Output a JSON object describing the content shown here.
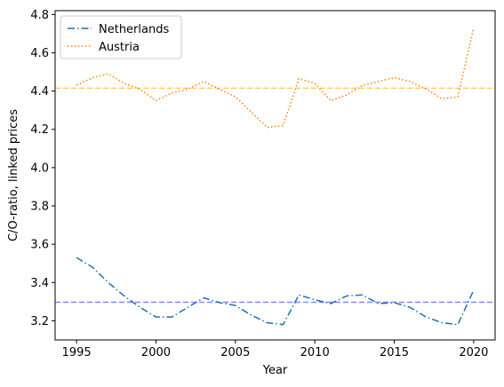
{
  "chart_data": {
    "type": "line",
    "xlabel": "Year",
    "ylabel": "C/O-ratio, linked prices",
    "xlim": [
      1993.65,
      2021.35
    ],
    "ylim": [
      3.1,
      4.82
    ],
    "xticks": [
      1995,
      2000,
      2005,
      2010,
      2015,
      2020
    ],
    "yticks": [
      3.2,
      3.4,
      3.6,
      3.8,
      4.0,
      4.2,
      4.4,
      4.6,
      4.8
    ],
    "ytick_labels": [
      "3.2",
      "3.4",
      "3.6",
      "3.8",
      "4.0",
      "4.2",
      "4.4",
      "4.6",
      "4.8"
    ],
    "grid": false,
    "legend_position": "top-left",
    "x": [
      1995,
      1996,
      1997,
      1998,
      1999,
      2000,
      2001,
      2002,
      2003,
      2004,
      2005,
      2006,
      2007,
      2008,
      2009,
      2010,
      2011,
      2012,
      2013,
      2014,
      2015,
      2016,
      2017,
      2018,
      2019,
      2020
    ],
    "series": [
      {
        "name": "Netherlands",
        "color": "#1f6fb0",
        "style": "dashdot",
        "values": [
          3.53,
          3.48,
          3.4,
          3.33,
          3.27,
          3.22,
          3.22,
          3.27,
          3.32,
          3.295,
          3.28,
          3.23,
          3.19,
          3.18,
          3.335,
          3.31,
          3.29,
          3.33,
          3.335,
          3.29,
          3.295,
          3.27,
          3.22,
          3.19,
          3.18,
          3.36
        ]
      },
      {
        "name": "Austria",
        "color": "#ff7f0e",
        "style": "dotted",
        "values": [
          4.43,
          4.47,
          4.49,
          4.44,
          4.41,
          4.35,
          4.39,
          4.41,
          4.45,
          4.41,
          4.37,
          4.29,
          4.21,
          4.22,
          4.465,
          4.44,
          4.35,
          4.38,
          4.43,
          4.45,
          4.47,
          4.45,
          4.41,
          4.36,
          4.37,
          4.73
        ]
      }
    ],
    "reference_lines": [
      {
        "y": 4.415,
        "color": "#ffcc66",
        "style": "dashed"
      },
      {
        "y": 3.297,
        "color": "#8888ff",
        "style": "dashed"
      }
    ]
  }
}
